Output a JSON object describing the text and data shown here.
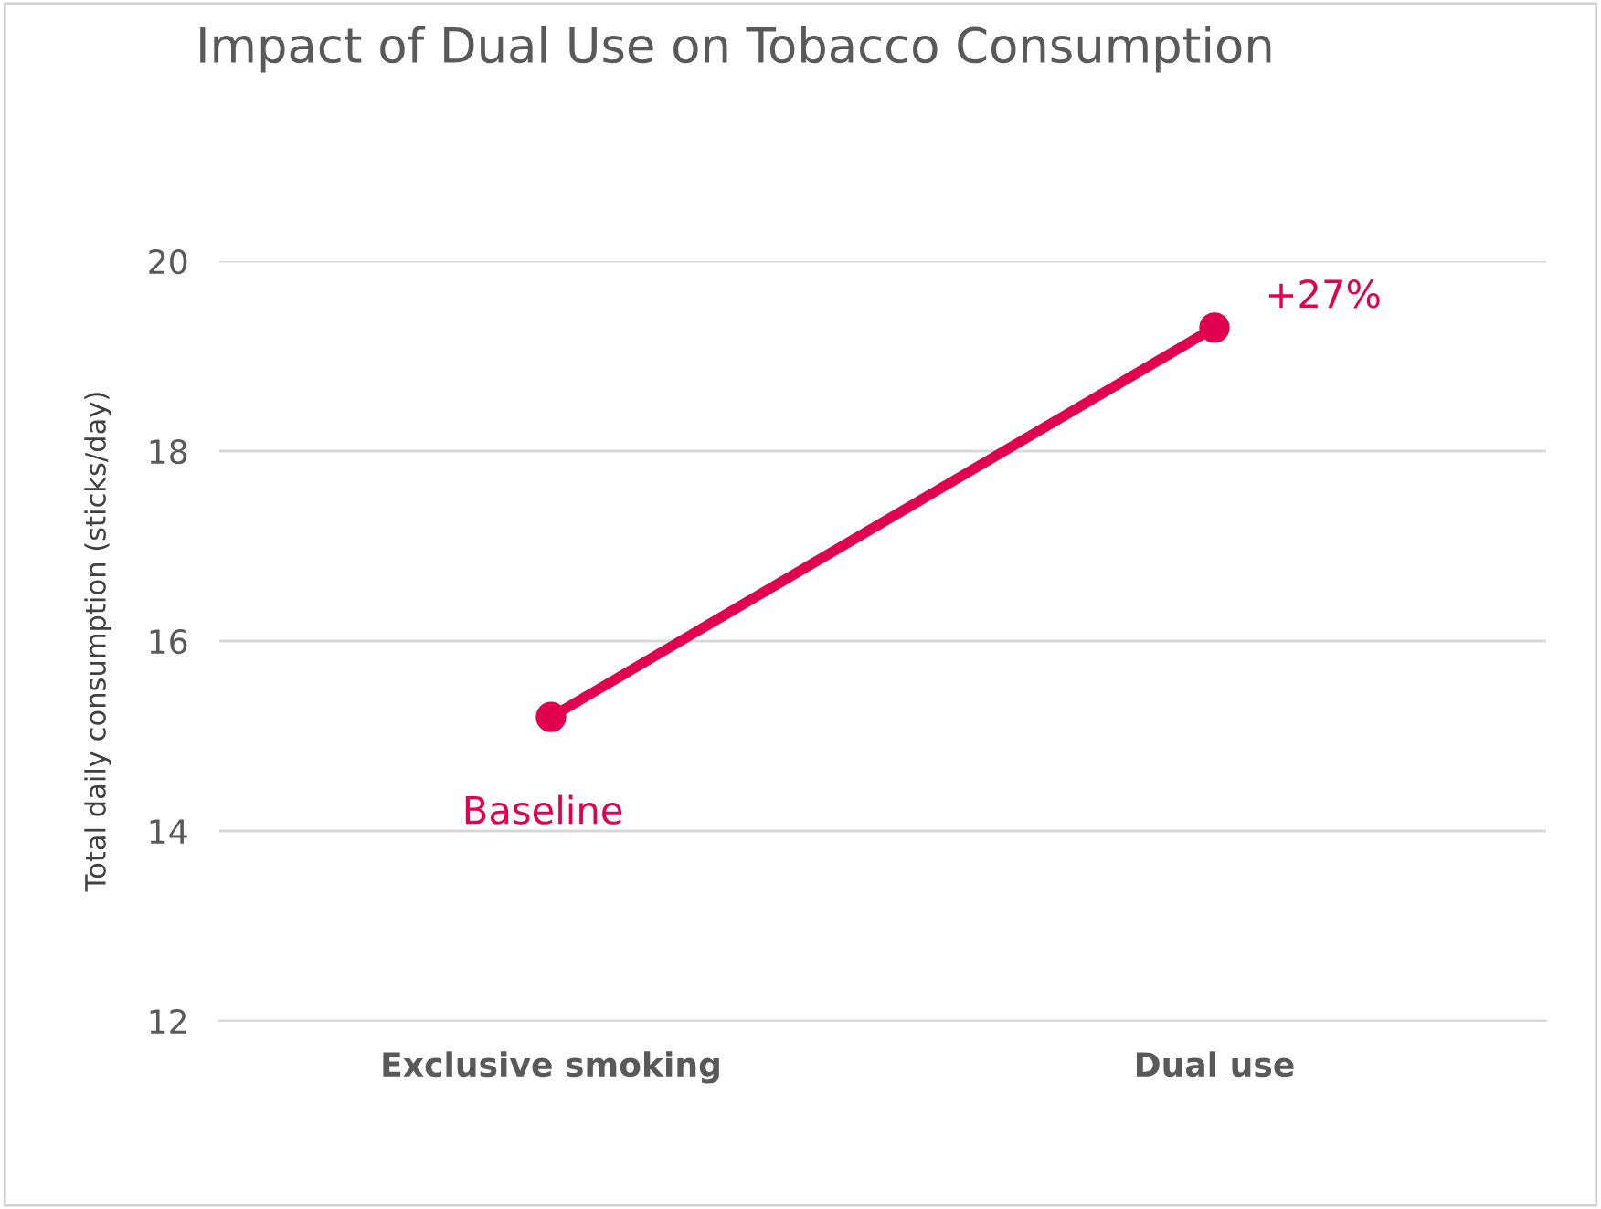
{
  "chart_data": {
    "type": "line",
    "title": "Impact of Dual Use on Tobacco Consumption",
    "ylabel": "Total daily consumption (sticks/day)",
    "categories": [
      "Exclusive smoking",
      "Dual use"
    ],
    "series": [
      {
        "color": "#e0004d",
        "values": [
          15.2,
          19.3
        ]
      }
    ],
    "ylim": [
      12,
      20
    ],
    "yticks": [
      12,
      14,
      16,
      18,
      20
    ],
    "grid": "y",
    "marker": "circle",
    "line_style": "solid",
    "annotations": [
      {
        "text": "Baseline",
        "x": "Exclusive smoking",
        "y": 15.2
      },
      {
        "text": "+27%",
        "x": "Dual use",
        "y": 19.3
      }
    ]
  }
}
